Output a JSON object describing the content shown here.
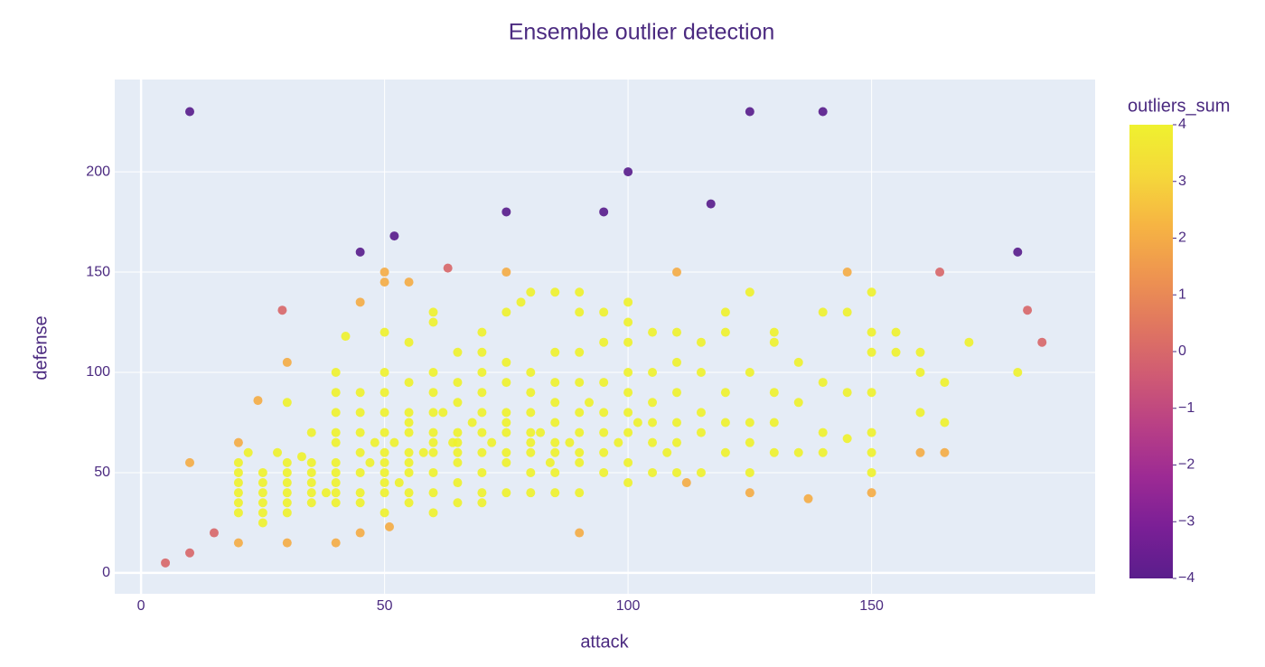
{
  "chart_data": {
    "type": "scatter",
    "title": "Ensemble outlier detection",
    "x_label": "attack",
    "y_label": "defense",
    "xlim": [
      -5.4,
      195.9
    ],
    "ylim": [
      -10.4,
      246
    ],
    "xticks": [
      0,
      50,
      100,
      150
    ],
    "yticks": [
      0,
      50,
      100,
      150,
      200
    ],
    "grid": true,
    "colorbar": {
      "title": "outliers_sum",
      "clim": [
        -4,
        4
      ],
      "ticks": [
        {
          "value": -4,
          "label": "−4"
        },
        {
          "value": -3,
          "label": "−3"
        },
        {
          "value": -2,
          "label": "−2"
        },
        {
          "value": -1,
          "label": "−1"
        },
        0,
        1,
        2,
        3,
        4
      ],
      "colorscale": [
        "#5a1e8c",
        "#7a1f96",
        "#9c2a94",
        "#b83f86",
        "#cf5a74",
        "#e07660",
        "#ee9450",
        "#f6b443",
        "#f5d83a",
        "#eff12f"
      ]
    },
    "series": [
      {
        "x": [
          10,
          125,
          140,
          100,
          117,
          75,
          95,
          52,
          45,
          180,
          5,
          10,
          15,
          29,
          63,
          164,
          182,
          185,
          10,
          20,
          20,
          24,
          30,
          30,
          40,
          45,
          45,
          50,
          50,
          51,
          55,
          75,
          90,
          110,
          112,
          125,
          137,
          145,
          150,
          160,
          165,
          20,
          20,
          20,
          20,
          20,
          20,
          22,
          25,
          25,
          25,
          25,
          25,
          25,
          28,
          30,
          30,
          30,
          30,
          30,
          30,
          30,
          33,
          35,
          35,
          35,
          35,
          35,
          35,
          38,
          40,
          40,
          40,
          40,
          40,
          40,
          40,
          40,
          40,
          40,
          42,
          45,
          45,
          45,
          45,
          45,
          45,
          45,
          47,
          48,
          50,
          50,
          50,
          50,
          50,
          50,
          50,
          50,
          50,
          50,
          50,
          52,
          53,
          55,
          55,
          55,
          55,
          55,
          55,
          55,
          55,
          55,
          55,
          58,
          60,
          60,
          60,
          60,
          60,
          60,
          60,
          60,
          60,
          60,
          60,
          62,
          64,
          65,
          65,
          65,
          65,
          65,
          65,
          65,
          65,
          65,
          68,
          70,
          70,
          70,
          70,
          70,
          70,
          70,
          70,
          70,
          70,
          72,
          75,
          75,
          75,
          75,
          75,
          75,
          75,
          75,
          75,
          78,
          80,
          80,
          80,
          80,
          80,
          80,
          80,
          80,
          80,
          82,
          84,
          85,
          85,
          85,
          85,
          85,
          85,
          85,
          85,
          85,
          88,
          90,
          90,
          90,
          90,
          90,
          90,
          90,
          90,
          90,
          92,
          95,
          95,
          95,
          95,
          95,
          95,
          95,
          98,
          100,
          100,
          100,
          100,
          100,
          100,
          100,
          100,
          100,
          102,
          105,
          105,
          105,
          105,
          105,
          105,
          108,
          110,
          110,
          110,
          110,
          110,
          110,
          115,
          115,
          115,
          115,
          115,
          120,
          120,
          120,
          120,
          120,
          125,
          125,
          125,
          125,
          125,
          130,
          130,
          130,
          130,
          130,
          135,
          135,
          135,
          140,
          140,
          140,
          140,
          145,
          145,
          145,
          150,
          150,
          150,
          150,
          150,
          150,
          150,
          155,
          155,
          160,
          160,
          160,
          165,
          165,
          170,
          180
        ],
        "y": [
          230,
          230,
          230,
          200,
          184,
          180,
          180,
          168,
          160,
          160,
          5,
          10,
          20,
          131,
          152,
          150,
          131,
          115,
          55,
          65,
          15,
          86,
          105,
          15,
          15,
          135,
          20,
          150,
          145,
          23,
          145,
          150,
          20,
          150,
          45,
          40,
          37,
          150,
          40,
          60,
          60,
          30,
          35,
          40,
          45,
          50,
          55,
          60,
          25,
          30,
          35,
          40,
          45,
          50,
          60,
          30,
          35,
          40,
          45,
          50,
          55,
          85,
          58,
          35,
          40,
          45,
          50,
          55,
          70,
          40,
          35,
          40,
          45,
          50,
          55,
          65,
          70,
          80,
          90,
          100,
          118,
          35,
          40,
          50,
          60,
          70,
          80,
          90,
          55,
          65,
          30,
          40,
          45,
          50,
          55,
          60,
          70,
          80,
          90,
          100,
          120,
          65,
          45,
          35,
          40,
          50,
          55,
          60,
          70,
          75,
          80,
          95,
          115,
          60,
          30,
          40,
          50,
          60,
          65,
          70,
          80,
          90,
          100,
          125,
          130,
          80,
          65,
          35,
          45,
          55,
          60,
          65,
          70,
          85,
          95,
          110,
          75,
          35,
          40,
          50,
          60,
          70,
          80,
          90,
          100,
          110,
          120,
          65,
          40,
          55,
          60,
          70,
          75,
          80,
          95,
          105,
          130,
          135,
          40,
          50,
          60,
          65,
          70,
          80,
          90,
          100,
          140,
          70,
          55,
          40,
          50,
          60,
          65,
          75,
          85,
          95,
          110,
          140,
          65,
          40,
          55,
          60,
          70,
          80,
          95,
          110,
          130,
          140,
          85,
          50,
          60,
          70,
          80,
          95,
          115,
          130,
          65,
          45,
          55,
          70,
          80,
          90,
          100,
          115,
          125,
          135,
          75,
          50,
          65,
          75,
          85,
          100,
          120,
          60,
          50,
          65,
          75,
          90,
          105,
          120,
          50,
          70,
          80,
          100,
          115,
          60,
          75,
          90,
          130,
          120,
          50,
          65,
          75,
          100,
          140,
          60,
          75,
          90,
          115,
          120,
          60,
          85,
          105,
          60,
          70,
          95,
          130,
          67,
          90,
          130,
          50,
          60,
          70,
          90,
          110,
          120,
          140,
          110,
          120,
          80,
          100,
          110,
          75,
          95,
          115,
          100
        ],
        "color_values": [
          -4,
          -4,
          -4,
          -4,
          -4,
          -4,
          -4,
          -4,
          -4,
          -4,
          0,
          0,
          0,
          0,
          0,
          0,
          0,
          0,
          2,
          2,
          2,
          2,
          2,
          2,
          2,
          2,
          2,
          2,
          2,
          2,
          2,
          2,
          2,
          2,
          2,
          2,
          2,
          2,
          2,
          2,
          2,
          4,
          4,
          4,
          4,
          4,
          4,
          4,
          4,
          4,
          4,
          4,
          4,
          4,
          4,
          4,
          4,
          4,
          4,
          4,
          4,
          4,
          4,
          4,
          4,
          4,
          4,
          4,
          4,
          4,
          4,
          4,
          4,
          4,
          4,
          4,
          4,
          4,
          4,
          4,
          4,
          4,
          4,
          4,
          4,
          4,
          4,
          4,
          4,
          4,
          4,
          4,
          4,
          4,
          4,
          4,
          4,
          4,
          4,
          4,
          4,
          4,
          4,
          4,
          4,
          4,
          4,
          4,
          4,
          4,
          4,
          4,
          4,
          4,
          4,
          4,
          4,
          4,
          4,
          4,
          4,
          4,
          4,
          4,
          4,
          4,
          4,
          4,
          4,
          4,
          4,
          4,
          4,
          4,
          4,
          4,
          4,
          4,
          4,
          4,
          4,
          4,
          4,
          4,
          4,
          4,
          4,
          4,
          4,
          4,
          4,
          4,
          4,
          4,
          4,
          4,
          4,
          4,
          4,
          4,
          4,
          4,
          4,
          4,
          4,
          4,
          4,
          4,
          4,
          4,
          4,
          4,
          4,
          4,
          4,
          4,
          4,
          4,
          4,
          4,
          4,
          4,
          4,
          4,
          4,
          4,
          4,
          4,
          4,
          4,
          4,
          4,
          4,
          4,
          4,
          4,
          4,
          4,
          4,
          4,
          4,
          4,
          4,
          4,
          4,
          4,
          4,
          4,
          4,
          4,
          4,
          4,
          4,
          4,
          4,
          4,
          4,
          4,
          4,
          4,
          4,
          4,
          4,
          4,
          4,
          4,
          4,
          4,
          4,
          4,
          4,
          4,
          4,
          4,
          4,
          4,
          4,
          4,
          4,
          4,
          4,
          4,
          4,
          4,
          4,
          4,
          4,
          4,
          4,
          4,
          4,
          4,
          4,
          4,
          4,
          4,
          4,
          4,
          4,
          4,
          4,
          4,
          4,
          4,
          4,
          4
        ]
      }
    ]
  }
}
